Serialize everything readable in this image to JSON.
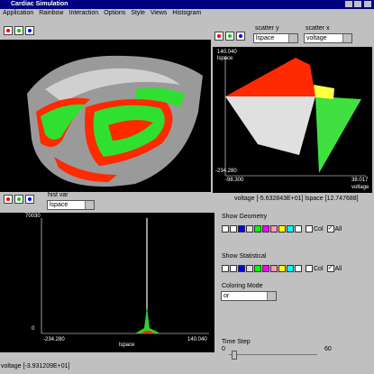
{
  "window": {
    "title": "Cardiac Simulation"
  },
  "menu": [
    "Application",
    "Rainbow",
    "Interaction",
    "Options",
    "Style",
    "Views",
    "Histogram"
  ],
  "scatter": {
    "y_label": "scatter y",
    "y_var": "lspace",
    "x_label": "scatter x",
    "x_var": "voltage",
    "y_max": "140.040",
    "y_min": "-234.280",
    "x_min": "-98.300",
    "x_max": "38.017",
    "y_axis": "lspace",
    "x_axis": "voltage",
    "readout": "voltage [-5.632843E+01]  lspace [12.747688]"
  },
  "histogram": {
    "label": "hist var",
    "var": "lspace",
    "y_max": "70030",
    "y_min": "0",
    "x_min": "-234.280",
    "x_max": "140.040",
    "x_axis": "lspace"
  },
  "controls": {
    "geometry": "Show Geometry",
    "statistical": "Show Statistical",
    "col": "Col",
    "all": "All",
    "coloring_label": "Coloring Mode",
    "coloring": "or",
    "time_label": "Time Step",
    "time_min": "0",
    "time_max": "60"
  },
  "status": "voltage [-3.931209E+01]"
}
